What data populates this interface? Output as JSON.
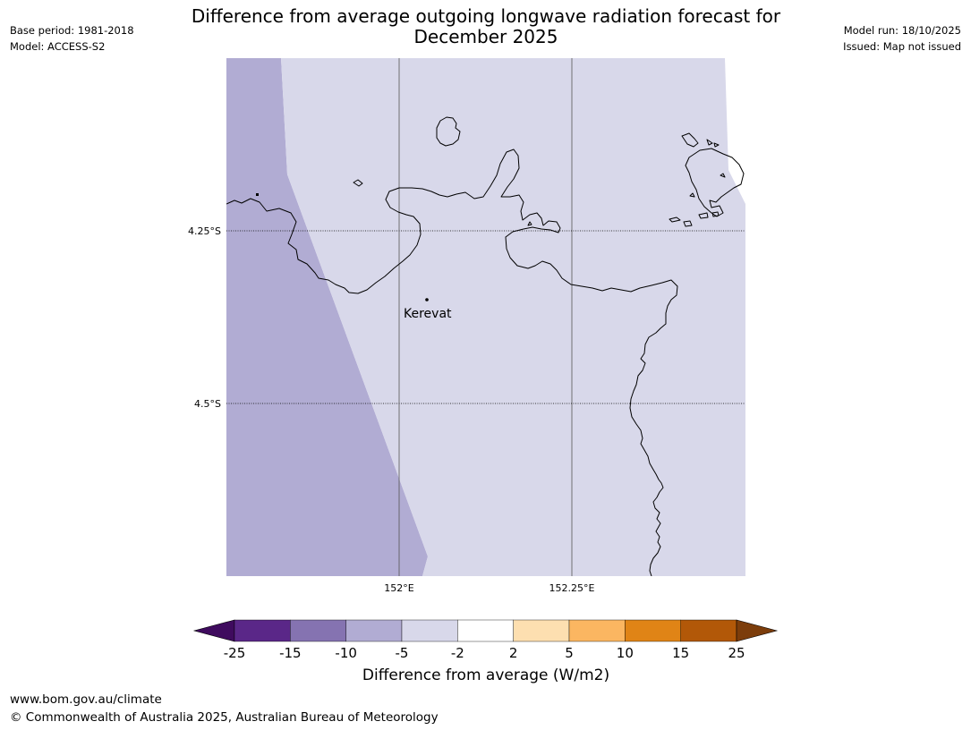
{
  "header": {
    "left_lines": [
      "Base period: 1981-2018",
      "Model: ACCESS-S2"
    ],
    "right_lines": [
      "Model run: 18/10/2025",
      "Issued: Map not issued"
    ],
    "title_line1": "Difference from average outgoing longwave radiation forecast for",
    "title_line2": "December 2025"
  },
  "map": {
    "lat_labels": [
      "4.25°S",
      "4.5°S"
    ],
    "lon_labels": [
      "152°E",
      "152.25°E"
    ],
    "place_label": "Kerevat",
    "fill_colors": {
      "region_west": "#b1acd3",
      "region_main": "#d8d8ea",
      "coast": "#000000",
      "grid": "#555555"
    }
  },
  "colorbar": {
    "label": "Difference from average (W/m2)",
    "tick_labels": [
      "-25",
      "-15",
      "-10",
      "-5",
      "-2",
      "2",
      "5",
      "10",
      "15",
      "25"
    ],
    "colors": [
      "#3f0b5e",
      "#5a2788",
      "#8573b1",
      "#b1acd3",
      "#d8d8ea",
      "#ffffff",
      "#fddfb0",
      "#fbb661",
      "#e08416",
      "#b25808",
      "#7c3d0b"
    ]
  },
  "footer": {
    "url": "www.bom.gov.au/climate",
    "copyright": "© Commonwealth of Australia 2025, Australian Bureau of Meteorology"
  }
}
